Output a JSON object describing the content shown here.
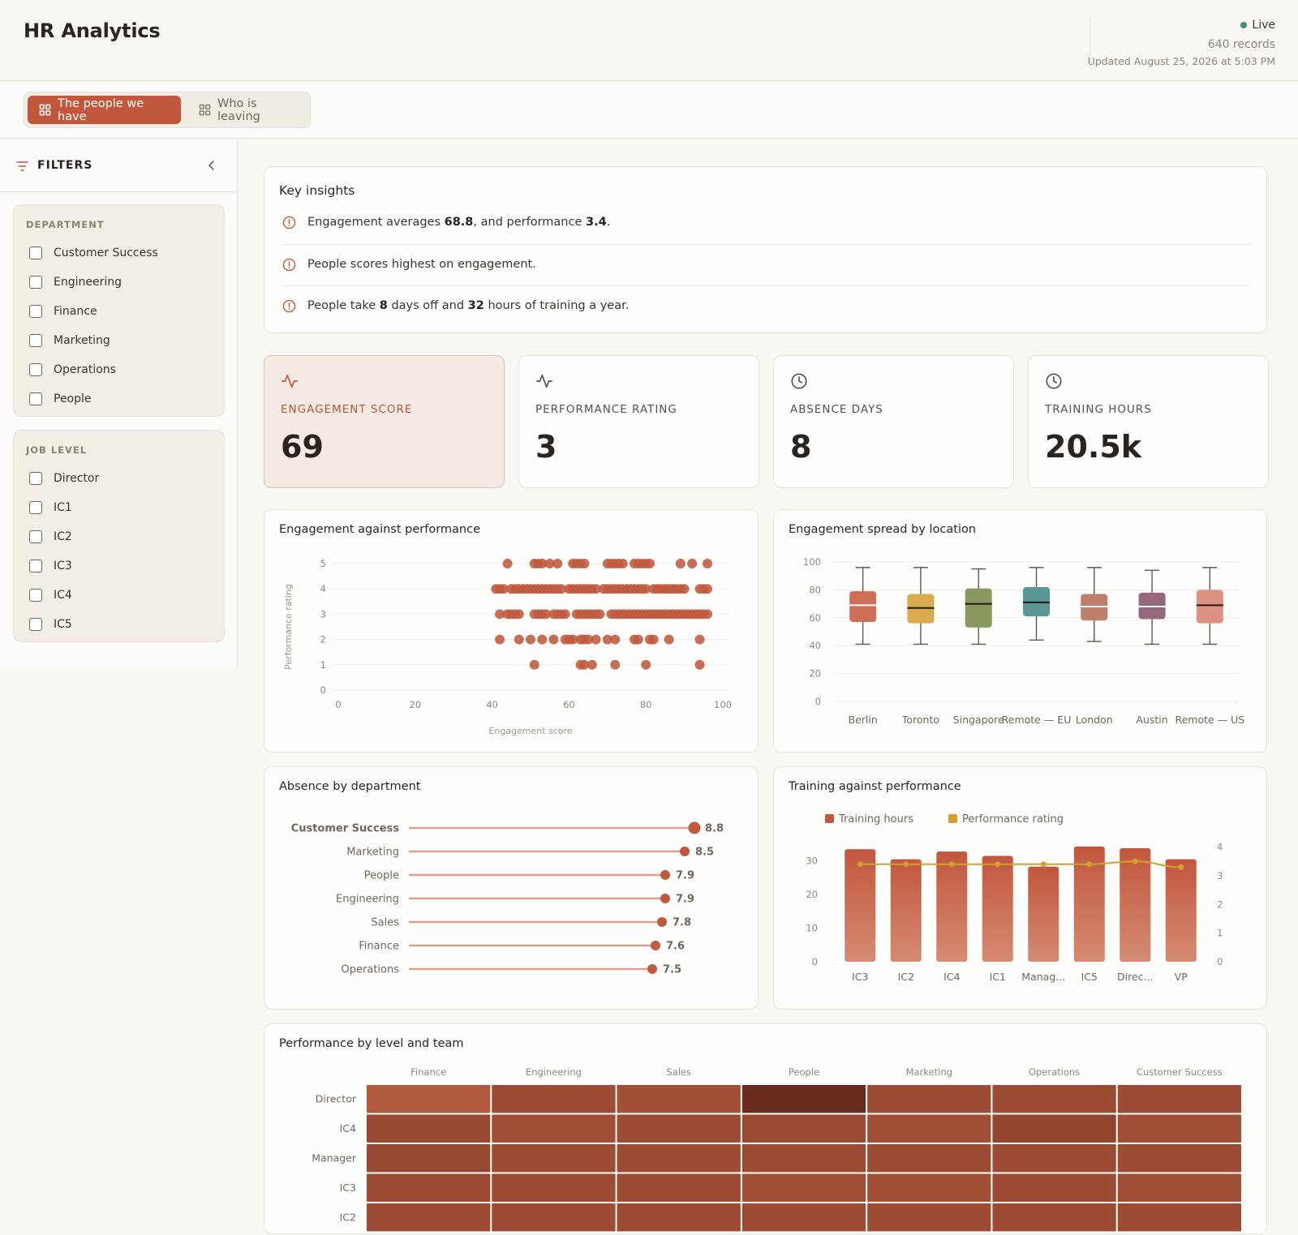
{
  "app": {
    "title": "HR Analytics",
    "status": "Live",
    "records": "640 records",
    "updated": "Updated August 25, 2026 at 5:03 PM"
  },
  "tabs": [
    {
      "label": "The people we have",
      "active": true
    },
    {
      "label": "Who is leaving",
      "active": false
    }
  ],
  "filters": {
    "title": "FILTERS",
    "groups": [
      {
        "title": "DEPARTMENT",
        "items": [
          "Customer Success",
          "Engineering",
          "Finance",
          "Marketing",
          "Operations",
          "People"
        ]
      },
      {
        "title": "JOB LEVEL",
        "items": [
          "Director",
          "IC1",
          "IC2",
          "IC3",
          "IC4",
          "IC5"
        ]
      }
    ]
  },
  "insights": {
    "title": "Key insights",
    "items": [
      {
        "pre": "Engagement averages ",
        "b1": "68.8",
        "mid": ", and performance ",
        "b2": "3.4",
        "post": "."
      },
      {
        "pre": "People scores highest on engagement.",
        "b1": "",
        "mid": "",
        "b2": "",
        "post": ""
      },
      {
        "pre": "People take ",
        "b1": "8",
        "mid": " days off and ",
        "b2": "32",
        "post": " hours of training a year."
      }
    ]
  },
  "kpis": [
    {
      "label": "ENGAGEMENT SCORE",
      "value": "69",
      "icon": "activity-icon",
      "highlight": true
    },
    {
      "label": "PERFORMANCE RATING",
      "value": "3",
      "icon": "activity-icon",
      "highlight": false
    },
    {
      "label": "ABSENCE DAYS",
      "value": "8",
      "icon": "clock-icon",
      "highlight": false
    },
    {
      "label": "TRAINING HOURS",
      "value": "20.5k",
      "icon": "clock-icon",
      "highlight": false
    }
  ],
  "colors": {
    "accent": "#c1573d",
    "dot": "#bf5a40",
    "line": "#d4a02e",
    "lollipop_line": "#dea08f"
  },
  "chart_data": [
    {
      "type": "scatter",
      "title": "Engagement against performance",
      "xlabel": "Engagement score",
      "ylabel": "Performance rating",
      "xlim": [
        0,
        100
      ],
      "ylim": [
        0,
        5
      ],
      "x_ticks": [
        0,
        20,
        40,
        60,
        80,
        100
      ],
      "y_ticks": [
        0,
        1,
        2,
        3,
        4,
        5
      ],
      "points": [
        [
          44,
          5
        ],
        [
          51,
          5
        ],
        [
          52,
          5
        ],
        [
          53,
          5
        ],
        [
          55,
          5
        ],
        [
          57,
          5
        ],
        [
          61,
          5
        ],
        [
          62,
          5
        ],
        [
          63,
          5
        ],
        [
          64,
          5
        ],
        [
          70,
          5
        ],
        [
          71,
          5
        ],
        [
          72,
          5
        ],
        [
          73,
          5
        ],
        [
          74,
          5
        ],
        [
          77,
          5
        ],
        [
          78,
          5
        ],
        [
          79,
          5
        ],
        [
          80,
          5
        ],
        [
          81,
          5
        ],
        [
          89,
          5
        ],
        [
          92,
          5
        ],
        [
          96,
          5
        ],
        [
          41,
          4
        ],
        [
          42,
          4
        ],
        [
          43,
          4
        ],
        [
          45,
          4
        ],
        [
          46,
          4
        ],
        [
          47,
          4
        ],
        [
          48,
          4
        ],
        [
          49,
          4
        ],
        [
          50,
          4
        ],
        [
          51,
          4
        ],
        [
          52,
          4
        ],
        [
          53,
          4
        ],
        [
          54,
          4
        ],
        [
          55,
          4
        ],
        [
          56,
          4
        ],
        [
          57,
          4
        ],
        [
          58,
          4
        ],
        [
          60,
          4
        ],
        [
          61,
          4
        ],
        [
          62,
          4
        ],
        [
          63,
          4
        ],
        [
          64,
          4
        ],
        [
          65,
          4
        ],
        [
          66,
          4
        ],
        [
          67,
          4
        ],
        [
          69,
          4
        ],
        [
          70,
          4
        ],
        [
          71,
          4
        ],
        [
          72,
          4
        ],
        [
          73,
          4
        ],
        [
          74,
          4
        ],
        [
          75,
          4
        ],
        [
          76,
          4
        ],
        [
          77,
          4
        ],
        [
          78,
          4
        ],
        [
          79,
          4
        ],
        [
          80,
          4
        ],
        [
          82,
          4
        ],
        [
          83,
          4
        ],
        [
          84,
          4
        ],
        [
          85,
          4
        ],
        [
          86,
          4
        ],
        [
          87,
          4
        ],
        [
          88,
          4
        ],
        [
          89,
          4
        ],
        [
          90,
          4
        ],
        [
          94,
          4
        ],
        [
          95,
          4
        ],
        [
          96,
          4
        ],
        [
          42,
          3
        ],
        [
          44,
          3
        ],
        [
          45,
          3
        ],
        [
          46,
          3
        ],
        [
          47,
          3
        ],
        [
          51,
          3
        ],
        [
          52,
          3
        ],
        [
          53,
          3
        ],
        [
          54,
          3
        ],
        [
          56,
          3
        ],
        [
          57,
          3
        ],
        [
          58,
          3
        ],
        [
          59,
          3
        ],
        [
          62,
          3
        ],
        [
          63,
          3
        ],
        [
          64,
          3
        ],
        [
          65,
          3
        ],
        [
          66,
          3
        ],
        [
          67,
          3
        ],
        [
          68,
          3
        ],
        [
          71,
          3
        ],
        [
          72,
          3
        ],
        [
          73,
          3
        ],
        [
          74,
          3
        ],
        [
          75,
          3
        ],
        [
          76,
          3
        ],
        [
          77,
          3
        ],
        [
          78,
          3
        ],
        [
          79,
          3
        ],
        [
          80,
          3
        ],
        [
          81,
          3
        ],
        [
          82,
          3
        ],
        [
          83,
          3
        ],
        [
          84,
          3
        ],
        [
          85,
          3
        ],
        [
          86,
          3
        ],
        [
          87,
          3
        ],
        [
          88,
          3
        ],
        [
          89,
          3
        ],
        [
          90,
          3
        ],
        [
          91,
          3
        ],
        [
          92,
          3
        ],
        [
          93,
          3
        ],
        [
          94,
          3
        ],
        [
          95,
          3
        ],
        [
          96,
          3
        ],
        [
          42,
          2
        ],
        [
          47,
          2
        ],
        [
          50,
          2
        ],
        [
          53,
          2
        ],
        [
          56,
          2
        ],
        [
          59,
          2
        ],
        [
          60,
          2
        ],
        [
          61,
          2
        ],
        [
          63,
          2
        ],
        [
          64,
          2
        ],
        [
          65,
          2
        ],
        [
          67,
          2
        ],
        [
          70,
          2
        ],
        [
          72,
          2
        ],
        [
          77,
          2
        ],
        [
          78,
          2
        ],
        [
          81,
          2
        ],
        [
          82,
          2
        ],
        [
          86,
          2
        ],
        [
          94,
          2
        ],
        [
          51,
          1
        ],
        [
          63,
          1
        ],
        [
          64,
          1
        ],
        [
          66,
          1
        ],
        [
          72,
          1
        ],
        [
          80,
          1
        ],
        [
          94,
          1
        ]
      ]
    },
    {
      "type": "box",
      "title": "Engagement spread by location",
      "ylim": [
        0,
        100
      ],
      "y_ticks": [
        0,
        20,
        40,
        60,
        80,
        100
      ],
      "categories": [
        "Berlin",
        "Toronto",
        "Singapore",
        "Remote — EU",
        "London",
        "Austin",
        "Remote — US"
      ],
      "boxes": [
        {
          "min": 41,
          "q1": 57,
          "median": 69,
          "q3": 79,
          "max": 96,
          "color": "#cb624a"
        },
        {
          "min": 41,
          "q1": 56,
          "median": 67,
          "q3": 77,
          "max": 96,
          "color": "#d7a43f"
        },
        {
          "min": 41,
          "q1": 53,
          "median": 70,
          "q3": 81,
          "max": 95,
          "color": "#7f8f4e"
        },
        {
          "min": 44,
          "q1": 61,
          "median": 71,
          "q3": 82,
          "max": 96,
          "color": "#4d8e8c"
        },
        {
          "min": 43,
          "q1": 58,
          "median": 68,
          "q3": 77,
          "max": 96,
          "color": "#b8735f"
        },
        {
          "min": 41,
          "q1": 59,
          "median": 68,
          "q3": 78,
          "max": 94,
          "color": "#8c5a73"
        },
        {
          "min": 41,
          "q1": 56,
          "median": 69,
          "q3": 80,
          "max": 96,
          "color": "#d98a78"
        }
      ]
    },
    {
      "type": "lollipop",
      "title": "Absence by department",
      "categories": [
        "Customer Success",
        "Marketing",
        "People",
        "Engineering",
        "Sales",
        "Finance",
        "Operations"
      ],
      "values": [
        8.8,
        8.5,
        7.9,
        7.9,
        7.8,
        7.6,
        7.5
      ],
      "xlim": [
        0,
        8.8
      ]
    },
    {
      "type": "bar",
      "title": "Training against performance",
      "categories": [
        "IC3",
        "IC2",
        "IC4",
        "IC1",
        "Manag...",
        "IC5",
        "Direc...",
        "VP"
      ],
      "series": [
        {
          "name": "Training hours",
          "axis": "left",
          "values": [
            33.5,
            30.5,
            32.8,
            31.5,
            28.3,
            34.3,
            33.8,
            30.5
          ]
        },
        {
          "name": "Performance rating",
          "axis": "right",
          "type": "line",
          "values": [
            3.4,
            3.4,
            3.4,
            3.4,
            3.4,
            3.4,
            3.5,
            3.3
          ]
        }
      ],
      "ylim_left": [
        0,
        35
      ],
      "y_ticks_left": [
        0,
        10,
        20,
        30
      ],
      "ylim_right": [
        0,
        4.1
      ],
      "y_ticks_right": [
        0,
        1,
        2,
        3,
        4
      ]
    },
    {
      "type": "heatmap",
      "title": "Performance by level and team",
      "columns": [
        "Finance",
        "Engineering",
        "Sales",
        "People",
        "Marketing",
        "Operations",
        "Customer Success"
      ],
      "rows": [
        "Director",
        "IC4",
        "Manager",
        "IC3",
        "IC2"
      ],
      "values": [
        [
          3.0,
          3.4,
          3.3,
          4.3,
          3.4,
          3.4,
          3.4
        ],
        [
          3.5,
          3.3,
          3.4,
          3.4,
          3.3,
          3.6,
          3.3
        ],
        [
          3.5,
          3.4,
          3.4,
          3.4,
          3.4,
          3.4,
          3.4
        ],
        [
          3.4,
          3.4,
          3.4,
          3.3,
          3.3,
          3.4,
          3.3
        ],
        [
          3.4,
          3.4,
          3.4,
          3.4,
          3.4,
          3.4,
          3.4
        ]
      ]
    }
  ]
}
